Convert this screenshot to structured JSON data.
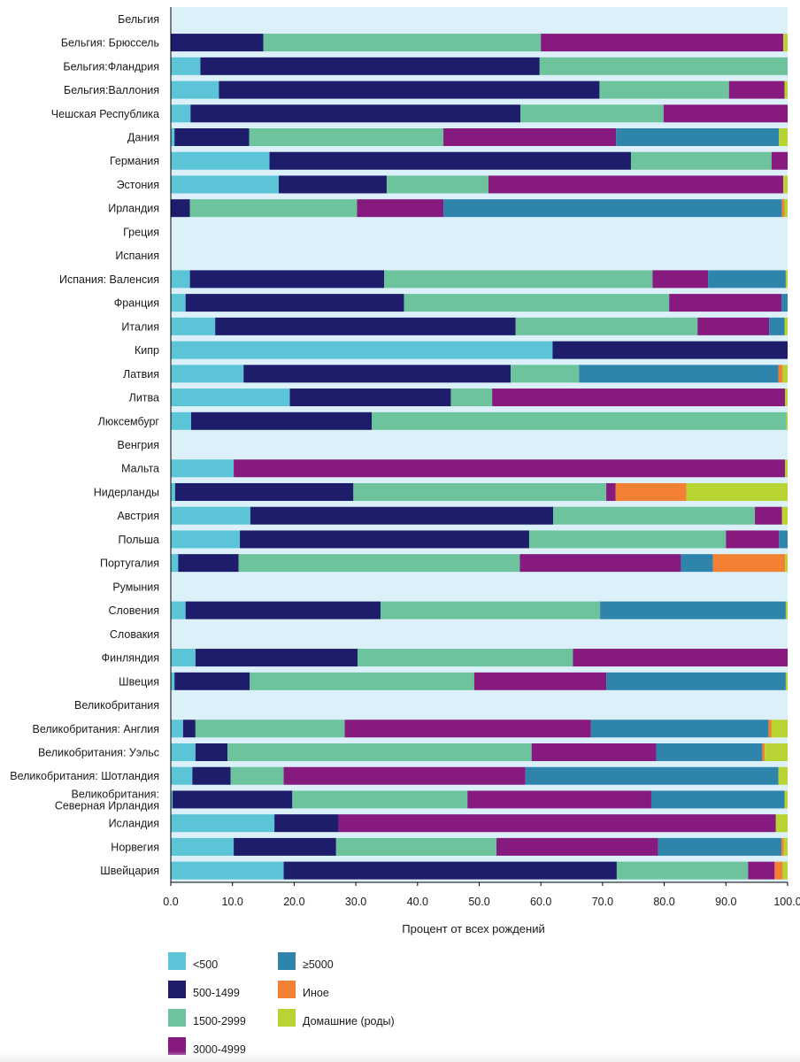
{
  "chart_data": {
    "type": "bar",
    "orientation": "horizontal",
    "stacked": true,
    "xlabel": "Процент от всех рождений",
    "ylabel": "",
    "xlim": [
      0,
      100
    ],
    "xticks": [
      "0.0",
      "10.0",
      "20.0",
      "30.0",
      "40.0",
      "50.0",
      "60.0",
      "70.0",
      "80.0",
      "90.0",
      "100.0"
    ],
    "legend_position": "bottom",
    "colors": {
      "lt500": "#5bc4d6",
      "c500_1499": "#1d1d6b",
      "c1500_2999": "#6cc39c",
      "c3000_4999": "#861a7f",
      "gte5000": "#2f84ab",
      "other": "#f28133",
      "home": "#b8d433",
      "plot_bg": "#dcf0fa"
    },
    "series": [
      {
        "key": "lt500",
        "name": "<500"
      },
      {
        "key": "c500_1499",
        "name": "500-1499"
      },
      {
        "key": "c1500_2999",
        "name": "1500-2999"
      },
      {
        "key": "c3000_4999",
        "name": "3000-4999"
      },
      {
        "key": "gte5000",
        "name": "≥5000"
      },
      {
        "key": "other",
        "name": "Иное"
      },
      {
        "key": "home",
        "name": "Домашние (роды)"
      }
    ],
    "categories": [
      {
        "label": "Бельгия",
        "values": []
      },
      {
        "label": "Бельгия: Брюссель",
        "values": [
          0,
          15,
          45,
          39.3,
          0,
          0,
          0.7
        ]
      },
      {
        "label": "Бельгия:Фландрия",
        "values": [
          4.8,
          55,
          40.2,
          0,
          0,
          0,
          0
        ]
      },
      {
        "label": "Бельгия:Валлония",
        "values": [
          7.8,
          61.7,
          21,
          9,
          0,
          0,
          0.5
        ]
      },
      {
        "label": "Чешская Республика",
        "values": [
          3.2,
          53.5,
          23.2,
          20.1,
          0,
          0,
          0
        ]
      },
      {
        "label": "Дания",
        "values": [
          0.6,
          12.1,
          31.5,
          28,
          26.4,
          0,
          1.4
        ]
      },
      {
        "label": "Германия",
        "values": [
          16,
          58.6,
          22.8,
          2.6,
          0,
          0,
          0
        ]
      },
      {
        "label": "Эстония",
        "values": [
          17.5,
          17.5,
          16.5,
          47.8,
          0,
          0,
          0.7
        ]
      },
      {
        "label": "Ирландия",
        "values": [
          0,
          3.1,
          27.1,
          14,
          54.9,
          0.4,
          0.5
        ]
      },
      {
        "label": "Греция",
        "values": []
      },
      {
        "label": "Испания",
        "values": []
      },
      {
        "label": "Испания: Валенсия",
        "values": [
          3.1,
          31.5,
          43.5,
          9,
          12.6,
          0,
          0.3
        ]
      },
      {
        "label": "Франция",
        "values": [
          2.4,
          35.4,
          43,
          18.2,
          1,
          0,
          0
        ]
      },
      {
        "label": "Италия",
        "values": [
          7.2,
          48.7,
          29.5,
          11.6,
          2.5,
          0,
          0.5
        ]
      },
      {
        "label": "Кипр",
        "values": [
          61.9,
          38.1,
          0,
          0,
          0,
          0,
          0
        ]
      },
      {
        "label": "Латвия",
        "values": [
          11.8,
          43.3,
          11.1,
          0,
          32.3,
          0.7,
          0.8
        ]
      },
      {
        "label": "Литва",
        "values": [
          19.3,
          26.1,
          6.7,
          47.5,
          0,
          0,
          0.4
        ]
      },
      {
        "label": "Люксембург",
        "values": [
          3.3,
          29.3,
          67.2,
          0,
          0,
          0,
          0.2
        ]
      },
      {
        "label": "Венгрия",
        "values": []
      },
      {
        "label": "Мальта",
        "values": [
          10.2,
          0,
          0,
          89.4,
          0,
          0,
          0.4
        ]
      },
      {
        "label": "Нидерланды",
        "values": [
          0.7,
          28.9,
          41,
          1.5,
          0,
          11.5,
          16.4
        ]
      },
      {
        "label": "Австрия",
        "values": [
          12.9,
          49.1,
          32.7,
          4.4,
          0,
          0,
          0.9
        ]
      },
      {
        "label": "Польша",
        "values": [
          11.2,
          46.9,
          31.9,
          8.6,
          1.4,
          0,
          0
        ]
      },
      {
        "label": "Португалия",
        "values": [
          1.2,
          9.8,
          45.6,
          26.1,
          5.2,
          11.7,
          0.4
        ]
      },
      {
        "label": "Румыния",
        "values": []
      },
      {
        "label": "Словения",
        "values": [
          2.4,
          31.6,
          35.6,
          0,
          30.1,
          0,
          0.3
        ]
      },
      {
        "label": "Словакия",
        "values": []
      },
      {
        "label": "Финляндия",
        "values": [
          4,
          26.3,
          34.9,
          34.8,
          0,
          0,
          0
        ]
      },
      {
        "label": "Швеция",
        "values": [
          0.6,
          12.2,
          36.4,
          21.4,
          29.1,
          0,
          0.3
        ]
      },
      {
        "label": "Великобритания",
        "values": []
      },
      {
        "label": "Великобритания: Англия",
        "values": [
          2,
          2,
          24.2,
          39.9,
          28.8,
          0.5,
          2.6
        ]
      },
      {
        "label": "Великобритания: Уэльс",
        "values": [
          4,
          5.2,
          49.3,
          20.2,
          17.2,
          0.4,
          3.7
        ]
      },
      {
        "label": "Великобритания: Шотландия",
        "values": [
          3.5,
          6.2,
          8.6,
          39.2,
          41,
          0,
          1.5
        ]
      },
      {
        "label": "Великобритания: Северная Ирландия",
        "label_lines": [
          "Великобритания:",
          "Северная Ирландия"
        ],
        "values": [
          0.3,
          19.4,
          28.4,
          29.8,
          21.6,
          0,
          0.5
        ]
      },
      {
        "label": "Исландия",
        "values": [
          16.8,
          10.4,
          0,
          70.9,
          0,
          0,
          1.9
        ]
      },
      {
        "label": "Норвегия",
        "values": [
          10.2,
          16.6,
          26,
          26.2,
          20,
          0.4,
          0.6
        ]
      },
      {
        "label": "Швейцария",
        "values": [
          18.3,
          54,
          21.3,
          4.3,
          0,
          1.3,
          0.8
        ]
      }
    ]
  }
}
